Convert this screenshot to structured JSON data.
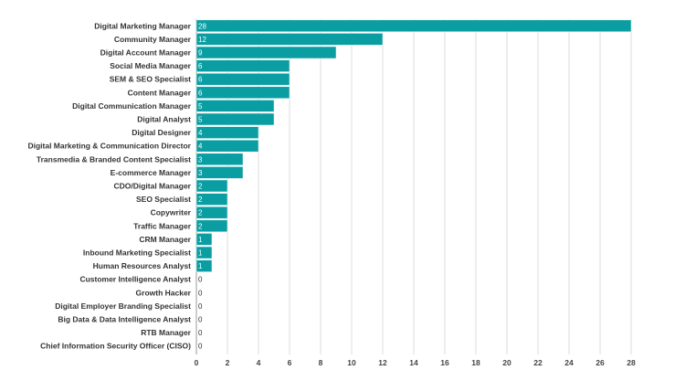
{
  "chart_data": {
    "type": "bar",
    "orientation": "horizontal",
    "title": "",
    "xlabel": "",
    "ylabel": "",
    "xlim": [
      0,
      28
    ],
    "x_ticks": [
      0,
      2,
      4,
      6,
      8,
      10,
      12,
      14,
      16,
      18,
      20,
      22,
      24,
      26,
      28
    ],
    "grid": true,
    "legend": "none",
    "bar_color": "#0a9ea2",
    "categories": [
      "Digital Marketing Manager",
      "Community Manager",
      "Digital Account Manager",
      "Social Media Manager",
      "SEM & SEO Specialist",
      "Content Manager",
      "Digital Communication Manager",
      "Digital Analyst",
      "Digital Designer",
      "Digital Marketing & Communication Director",
      "Transmedia & Branded Content Specialist",
      "E-commerce Manager",
      "CDO/Digital Manager",
      "SEO Specialist",
      "Copywriter",
      "Traffic Manager",
      "CRM Manager",
      "Inbound Marketing Specialist",
      "Human Resources Analyst",
      "Customer Intelligence Analyst",
      "Growth Hacker",
      "Digital Employer Branding Specialist",
      "Big Data & Data Intelligence Analyst",
      "RTB Manager",
      "Chief Information Security Officer (CISO)"
    ],
    "values": [
      28,
      12,
      9,
      6,
      6,
      6,
      5,
      5,
      4,
      4,
      3,
      3,
      2,
      2,
      2,
      2,
      1,
      1,
      1,
      0,
      0,
      0,
      0,
      0,
      0
    ]
  }
}
